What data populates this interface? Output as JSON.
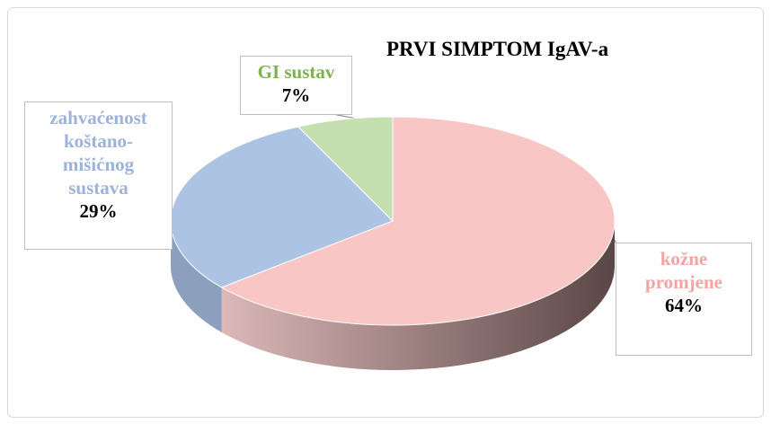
{
  "chart_data": {
    "type": "pie",
    "title": "PRVI SIMPTOM IgAV-a",
    "categories": [
      "kožne promjene",
      "zahvaćenost koštano-mišićnog sustava",
      "GI sustav"
    ],
    "values": [
      64,
      29,
      7
    ],
    "value_labels": [
      "64%",
      "29%",
      "7%"
    ],
    "colors": [
      "#f9c6c6",
      "#adc3e3",
      "#c4dfb0"
    ],
    "label_colors": [
      "#f4a3a3",
      "#9db3db",
      "#7cb24f"
    ]
  }
}
